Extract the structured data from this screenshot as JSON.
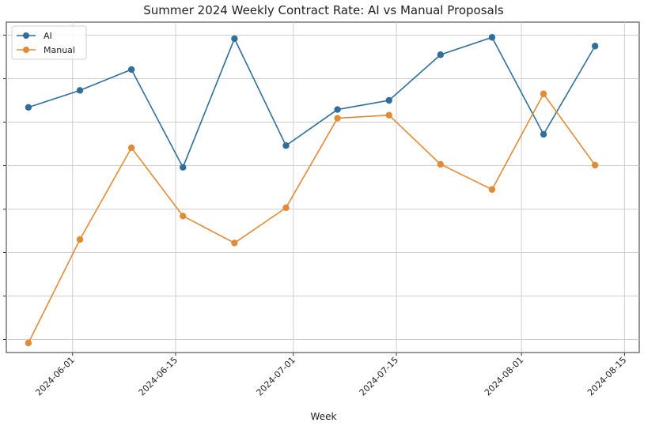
{
  "chart_data": {
    "type": "line",
    "title": "Summer 2024 Weekly Contract Rate: AI vs Manual Proposals",
    "xlabel": "Week",
    "ylabel": "",
    "x_ticks": [
      "2024-06-01",
      "2024-06-15",
      "2024-07-01",
      "2024-07-15",
      "2024-08-01",
      "2024-08-15"
    ],
    "x": [
      "2024-05-26",
      "2024-06-02",
      "2024-06-09",
      "2024-06-16",
      "2024-06-23",
      "2024-06-30",
      "2024-07-07",
      "2024-07-14",
      "2024-07-21",
      "2024-07-28",
      "2024-08-04",
      "2024-08-11"
    ],
    "series": [
      {
        "name": "AI",
        "color": "#2f6f99",
        "values": [
          58.4,
          62.3,
          67.1,
          44.6,
          74.2,
          49.6,
          57.9,
          60.0,
          70.5,
          74.5,
          52.2,
          72.5
        ]
      },
      {
        "name": "Manual",
        "color": "#e08b35",
        "values": [
          4.2,
          28.0,
          49.1,
          33.4,
          27.2,
          35.3,
          55.9,
          56.6,
          45.3,
          39.5,
          61.5,
          45.1
        ]
      }
    ],
    "xlim": [
      "2024-05-23",
      "2024-08-17"
    ],
    "ylim": [
      2,
      78
    ],
    "y_gridlines": [
      5,
      15,
      25,
      35,
      45,
      55,
      65,
      75
    ],
    "grid": true,
    "legend": "top-left"
  }
}
